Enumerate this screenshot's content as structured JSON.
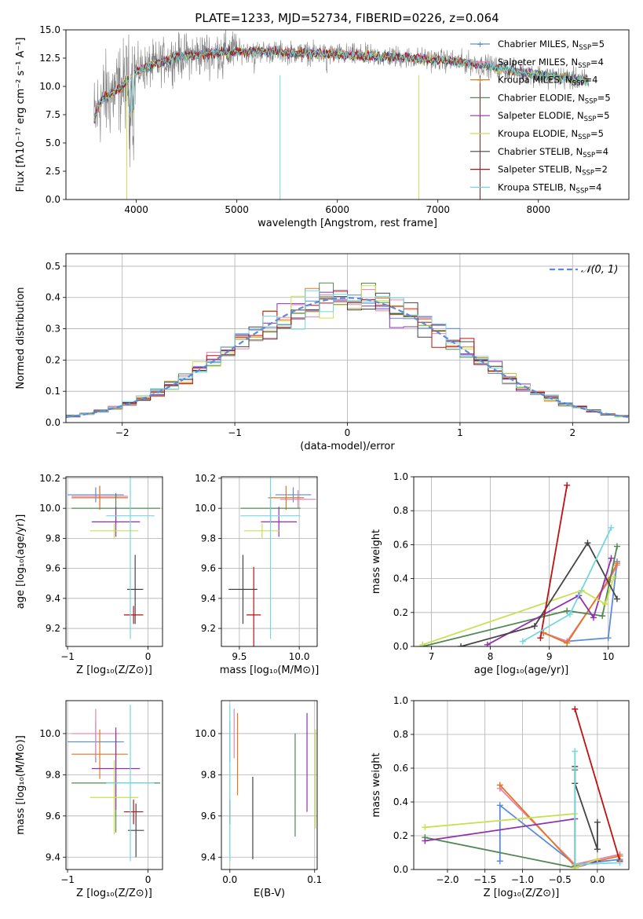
{
  "title": "PLATE=1233, MJD=52734, FIBERID=0226, z=0.064",
  "colors": {
    "Chabrier MILES": "#5b8bdc",
    "Salpeter MILES": "#e880b0",
    "Kroupa MILES": "#e07820",
    "Chabrier ELODIE": "#508850",
    "Salpeter ELODIE": "#9030b0",
    "Kroupa ELODIE": "#c8e050",
    "Chabrier STELIB": "#444444",
    "Salpeter STELIB": "#c01010",
    "Kroupa STELIB": "#70d8e0",
    "data": "#808080"
  },
  "chart_data": [
    {
      "id": "spectrum",
      "type": "line",
      "xlabel": "wavelength [Angstrom, rest frame]",
      "ylabel": "Flux [fλ10⁻¹⁷ erg cm⁻² s⁻¹ A⁻¹]",
      "xlim": [
        3300,
        8900
      ],
      "ylim": [
        0,
        15
      ],
      "xticks": [
        "4000",
        "5000",
        "6000",
        "7000",
        "8000"
      ],
      "yticks": [
        "0.0",
        "2.5",
        "5.0",
        "7.5",
        "10.0",
        "12.5",
        "15.0"
      ],
      "legend_position": "top-right",
      "legend": [
        "Chabrier MILES, N_SSP=5",
        "Salpeter MILES, N_SSP=4",
        "Kroupa MILES, N_SSP=4",
        "Chabrier ELODIE, N_SSP=5",
        "Salpeter ELODIE, N_SSP=5",
        "Kroupa ELODIE, N_SSP=5",
        "Chabrier STELIB, N_SSP=4",
        "Salpeter STELIB, N_SSP=2",
        "Kroupa STELIB, N_SSP=4"
      ],
      "continuum": {
        "x": [
          3580,
          3650,
          3800,
          3900,
          4000,
          4200,
          4400,
          4600,
          4800,
          5000,
          5200,
          5500,
          5800,
          6000,
          6300,
          6600,
          6900,
          7200,
          7500,
          7800,
          8000,
          8300,
          8500
        ],
        "y": [
          7.0,
          8.8,
          9.6,
          10.3,
          11.4,
          12.0,
          12.6,
          12.8,
          13.0,
          13.1,
          13.1,
          13.0,
          12.9,
          12.8,
          12.7,
          12.6,
          12.4,
          12.2,
          11.8,
          11.3,
          11.0,
          10.7,
          10.5
        ]
      }
    },
    {
      "id": "residuals",
      "type": "histogram",
      "xlabel": "(data-model)/error",
      "ylabel": "Normed distribution",
      "xlim": [
        -2.5,
        2.5
      ],
      "ylim": [
        0,
        0.54
      ],
      "xticks": [
        "−2",
        "−1",
        "0",
        "1",
        "2"
      ],
      "yticks": [
        "0.0",
        "0.1",
        "0.2",
        "0.3",
        "0.4",
        "0.5"
      ],
      "bin_width": 0.125,
      "reference_curve": "normal(0,1)",
      "legend_position": "top-right"
    },
    {
      "id": "age-vs-Z",
      "type": "errorbar",
      "xlabel": "Z [log₁₀(Z/Z⊙)]",
      "ylabel": "age  [log₁₀(age/yr)]",
      "xlim": [
        -1.02,
        0.18
      ],
      "ylim": [
        9.08,
        10.21
      ],
      "xticks": [
        "−1",
        "0"
      ],
      "yticks": [
        "9.2",
        "9.4",
        "9.6",
        "9.8",
        "10.0",
        "10.2"
      ],
      "points": [
        {
          "model": "Chabrier MILES",
          "x": -0.65,
          "xerr": 0.35,
          "y": 10.09,
          "yerr": 0.05
        },
        {
          "model": "Salpeter MILES",
          "x": -0.6,
          "xerr": 0.35,
          "y": 10.08,
          "yerr": 0.07
        },
        {
          "model": "Kroupa MILES",
          "x": -0.6,
          "xerr": 0.35,
          "y": 10.07,
          "yerr": 0.08
        },
        {
          "model": "Chabrier ELODIE",
          "x": -0.4,
          "xerr": 0.55,
          "y": 10.0,
          "yerr": 0.1
        },
        {
          "model": "Salpeter ELODIE",
          "x": -0.4,
          "xerr": 0.3,
          "y": 9.91,
          "yerr": 0.1
        },
        {
          "model": "Kroupa ELODIE",
          "x": -0.42,
          "xerr": 0.3,
          "y": 9.85,
          "yerr": 0.05
        },
        {
          "model": "Chabrier STELIB",
          "x": -0.16,
          "xerr": 0.1,
          "y": 9.46,
          "yerr": 0.23
        },
        {
          "model": "Salpeter STELIB",
          "x": -0.18,
          "xerr": 0.12,
          "y": 9.29,
          "yerr": 0.06
        },
        {
          "model": "Kroupa STELIB",
          "x": -0.22,
          "xerr": 0.3,
          "y": 9.95,
          "yerr": 0.82
        }
      ]
    },
    {
      "id": "age-vs-mass",
      "type": "errorbar",
      "xlabel": "mass [log₁₀(M/M⊙)]",
      "ylabel": "",
      "xlim": [
        9.35,
        10.15
      ],
      "ylim": [
        9.08,
        10.21
      ],
      "xticks": [
        "9.5",
        "10.0"
      ],
      "yticks": [
        "9.2",
        "9.4",
        "9.6",
        "9.8",
        "10.0",
        "10.2"
      ],
      "points": [
        {
          "model": "Chabrier MILES",
          "x": 9.95,
          "xerr": 0.15,
          "y": 10.09,
          "yerr": 0.05
        },
        {
          "model": "Salpeter MILES",
          "x": 9.99,
          "xerr": 0.15,
          "y": 10.06,
          "yerr": 0.06
        },
        {
          "model": "Kroupa MILES",
          "x": 9.89,
          "xerr": 0.15,
          "y": 10.07,
          "yerr": 0.08
        },
        {
          "model": "Chabrier ELODIE",
          "x": 9.76,
          "xerr": 0.25,
          "y": 10.0,
          "yerr": 0.1
        },
        {
          "model": "Salpeter ELODIE",
          "x": 9.83,
          "xerr": 0.15,
          "y": 9.91,
          "yerr": 0.1
        },
        {
          "model": "Kroupa ELODIE",
          "x": 9.69,
          "xerr": 0.15,
          "y": 9.85,
          "yerr": 0.05
        },
        {
          "model": "Chabrier STELIB",
          "x": 9.53,
          "xerr": 0.12,
          "y": 9.46,
          "yerr": 0.23
        },
        {
          "model": "Salpeter STELIB",
          "x": 9.62,
          "xerr": 0.06,
          "y": 9.29,
          "yerr": 0.32
        },
        {
          "model": "Kroupa STELIB",
          "x": 9.76,
          "xerr": 0.25,
          "y": 9.95,
          "yerr": 0.82
        }
      ]
    },
    {
      "id": "weight-vs-age",
      "type": "line",
      "xlabel": "age  [log₁₀(age/yr)]",
      "ylabel": "mass weight",
      "xlim": [
        6.7,
        10.35
      ],
      "ylim": [
        0,
        1
      ],
      "xticks": [
        "7",
        "8",
        "9",
        "10"
      ],
      "yticks": [
        "0.0",
        "0.2",
        "0.4",
        "0.6",
        "0.8",
        "1.0"
      ],
      "series": [
        {
          "model": "Chabrier MILES",
          "x": [
            8.9,
            9.3,
            10.0,
            10.15
          ],
          "y": [
            0.08,
            0.03,
            0.05,
            0.5
          ]
        },
        {
          "model": "Salpeter MILES",
          "x": [
            8.9,
            9.3,
            10.0,
            10.15
          ],
          "y": [
            0.08,
            0.03,
            0.38,
            0.48
          ]
        },
        {
          "model": "Kroupa MILES",
          "x": [
            8.9,
            9.3,
            10.0,
            10.15
          ],
          "y": [
            0.08,
            0.02,
            0.39,
            0.49
          ]
        },
        {
          "model": "Chabrier ELODIE",
          "x": [
            6.85,
            9.3,
            9.9,
            10.15
          ],
          "y": [
            0.0,
            0.21,
            0.18,
            0.59
          ]
        },
        {
          "model": "Salpeter ELODIE",
          "x": [
            7.95,
            9.5,
            9.75,
            10.05
          ],
          "y": [
            0.01,
            0.3,
            0.17,
            0.52
          ]
        },
        {
          "model": "Kroupa ELODIE",
          "x": [
            6.85,
            9.55,
            9.95,
            10.1
          ],
          "y": [
            0.01,
            0.33,
            0.25,
            0.41
          ]
        },
        {
          "model": "Chabrier STELIB",
          "x": [
            7.5,
            8.75,
            9.65,
            10.15
          ],
          "y": [
            0.0,
            0.12,
            0.61,
            0.28
          ]
        },
        {
          "model": "Salpeter STELIB",
          "x": [
            8.85,
            9.3
          ],
          "y": [
            0.05,
            0.95
          ]
        },
        {
          "model": "Kroupa STELIB",
          "x": [
            8.55,
            9.35,
            10.05
          ],
          "y": [
            0.03,
            0.19,
            0.7
          ]
        }
      ]
    },
    {
      "id": "mass-vs-Z",
      "type": "errorbar",
      "xlabel": "Z [log₁₀(Z/Z⊙)]",
      "ylabel": "mass [log₁₀(M/M⊙)]",
      "xlim": [
        -1.02,
        0.18
      ],
      "ylim": [
        9.34,
        10.16
      ],
      "xticks": [
        "−1",
        "0"
      ],
      "yticks": [
        "9.4",
        "9.6",
        "9.8",
        "10.0"
      ],
      "points": [
        {
          "model": "Chabrier MILES",
          "x": -0.65,
          "xerr": 0.35,
          "y": 9.96,
          "yerr": 0.1
        },
        {
          "model": "Salpeter MILES",
          "x": -0.65,
          "xerr": 0.3,
          "y": 10.0,
          "yerr": 0.12
        },
        {
          "model": "Kroupa MILES",
          "x": -0.6,
          "xerr": 0.35,
          "y": 9.9,
          "yerr": 0.12
        },
        {
          "model": "Chabrier ELODIE",
          "x": -0.4,
          "xerr": 0.55,
          "y": 9.76,
          "yerr": 0.24
        },
        {
          "model": "Salpeter ELODIE",
          "x": -0.4,
          "xerr": 0.3,
          "y": 9.83,
          "yerr": 0.2
        },
        {
          "model": "Kroupa ELODIE",
          "x": -0.42,
          "xerr": 0.3,
          "y": 9.69,
          "yerr": 0.18
        },
        {
          "model": "Chabrier STELIB",
          "x": -0.15,
          "xerr": 0.1,
          "y": 9.53,
          "yerr": 0.13
        },
        {
          "model": "Salpeter STELIB",
          "x": -0.18,
          "xerr": 0.12,
          "y": 9.62,
          "yerr": 0.06
        },
        {
          "model": "Kroupa STELIB",
          "x": -0.22,
          "xerr": 0.3,
          "y": 9.76,
          "yerr": 0.38
        }
      ]
    },
    {
      "id": "mass-vs-EBV",
      "type": "errorbar",
      "xlabel": "E(B-V)",
      "ylabel": "",
      "xlim": [
        -0.01,
        0.103
      ],
      "ylim": [
        9.34,
        10.16
      ],
      "xticks": [
        "0.0",
        "0.1"
      ],
      "yticks": [
        "9.4",
        "9.6",
        "9.8",
        "10.0"
      ],
      "points": [
        {
          "model": "Chabrier MILES",
          "x": 0.0,
          "xerr": 0,
          "y": 9.96,
          "yerr": 0.1
        },
        {
          "model": "Salpeter MILES",
          "x": 0.005,
          "xerr": 0,
          "y": 10.0,
          "yerr": 0.12
        },
        {
          "model": "Kroupa MILES",
          "x": 0.009,
          "xerr": 0,
          "y": 9.9,
          "yerr": 0.2
        },
        {
          "model": "Chabrier ELODIE",
          "x": 0.077,
          "xerr": 0,
          "y": 9.75,
          "yerr": 0.25
        },
        {
          "model": "Salpeter ELODIE",
          "x": 0.091,
          "xerr": 0,
          "y": 9.86,
          "yerr": 0.24
        },
        {
          "model": "Kroupa ELODIE",
          "x": 0.101,
          "xerr": 0,
          "y": 9.78,
          "yerr": 0.24
        },
        {
          "model": "Chabrier STELIB",
          "x": 0.027,
          "xerr": 0,
          "y": 9.59,
          "yerr": 0.2
        },
        {
          "model": "Salpeter STELIB",
          "x": 0.0,
          "xerr": 0,
          "y": 9.62,
          "yerr": 0.06
        },
        {
          "model": "Kroupa STELIB",
          "x": 0.0,
          "xerr": 0,
          "y": 9.76,
          "yerr": 0.38
        }
      ]
    },
    {
      "id": "weight-vs-Z",
      "type": "line",
      "xlabel": "Z [log₁₀(Z/Z⊙)]",
      "ylabel": "mass weight",
      "xlim": [
        -2.45,
        0.42
      ],
      "ylim": [
        0,
        1
      ],
      "xticks": [
        "−2.0",
        "−1.5",
        "−1.0",
        "−0.5",
        "0.0"
      ],
      "yticks": [
        "0.0",
        "0.2",
        "0.4",
        "0.6",
        "0.8",
        "1.0"
      ],
      "series": [
        {
          "model": "Chabrier MILES",
          "x": [
            -1.3,
            -1.3,
            -0.3,
            0.3
          ],
          "y": [
            0.05,
            0.38,
            0.03,
            0.06
          ]
        },
        {
          "model": "Salpeter MILES",
          "x": [
            -1.3,
            -0.3,
            0.3
          ],
          "y": [
            0.48,
            0.03,
            0.09
          ]
        },
        {
          "model": "Kroupa MILES",
          "x": [
            -1.3,
            -0.3,
            0.3
          ],
          "y": [
            0.5,
            0.02,
            0.08
          ]
        },
        {
          "model": "Chabrier ELODIE",
          "x": [
            -2.3,
            -0.3,
            -0.3
          ],
          "y": [
            0.19,
            0.01,
            0.59
          ]
        },
        {
          "model": "Salpeter ELODIE",
          "x": [
            -2.3,
            -0.3,
            -0.3,
            0.0
          ],
          "y": [
            0.17,
            0.3,
            0.01,
            0.05
          ]
        },
        {
          "model": "Kroupa ELODIE",
          "x": [
            -2.3,
            -0.3,
            -0.3,
            0.0
          ],
          "y": [
            0.25,
            0.33,
            0.01,
            0.06
          ]
        },
        {
          "model": "Chabrier STELIB",
          "x": [
            -0.3,
            -0.3,
            0.0,
            0.0
          ],
          "y": [
            0.61,
            0.51,
            0.12,
            0.28
          ]
        },
        {
          "model": "Salpeter STELIB",
          "x": [
            -0.3,
            0.3
          ],
          "y": [
            0.95,
            0.05
          ]
        },
        {
          "model": "Kroupa STELIB",
          "x": [
            -0.3,
            -0.3,
            0.3
          ],
          "y": [
            0.7,
            0.03,
            0.04
          ]
        }
      ]
    }
  ]
}
